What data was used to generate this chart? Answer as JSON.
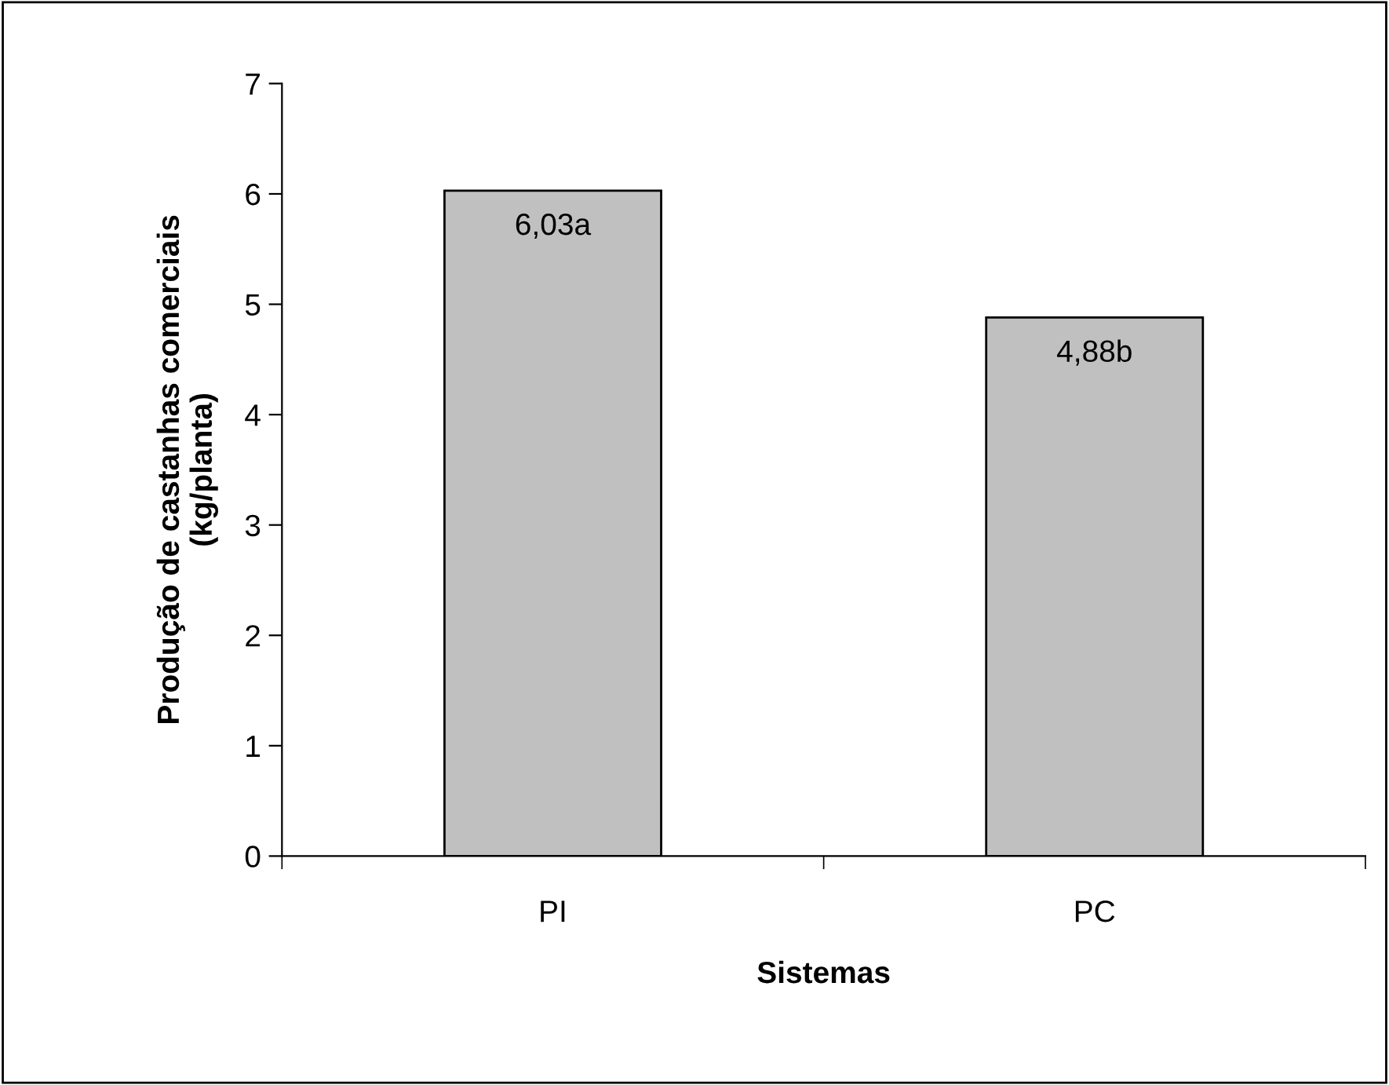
{
  "chart_data": {
    "type": "bar",
    "xlabel": "Sistemas",
    "ylabel": "Produção de castanhas comerciais\n(kg/planta)",
    "categories": [
      "PI",
      "PC"
    ],
    "values": [
      6.03,
      4.88
    ],
    "value_labels": [
      "6,03a",
      "4,88b"
    ],
    "color": "#c0c0c0",
    "ylim": [
      0,
      7
    ],
    "yticks": [
      0,
      1,
      2,
      3,
      4,
      5,
      6,
      7
    ],
    "grid": false,
    "legend": false
  }
}
